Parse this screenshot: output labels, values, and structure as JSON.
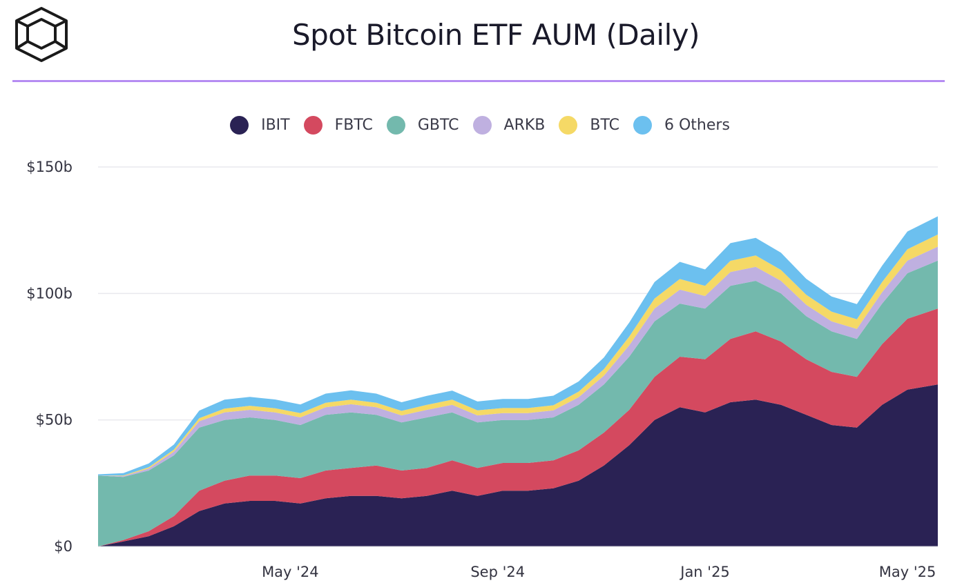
{
  "header": {
    "title": "Spot Bitcoin ETF AUM (Daily)",
    "logo_icon": "cube-logo-icon"
  },
  "colors": {
    "rule": "#b58cf2",
    "IBIT": "#2a2254",
    "FBTC": "#d4495f",
    "GBTC": "#73b9ad",
    "ARKB": "#bfb0e0",
    "BTC": "#f5d966",
    "6 Others": "#6cc0ef",
    "grid": "#e9e9ee"
  },
  "chart_data": {
    "type": "area",
    "stacked": true,
    "title": "Spot Bitcoin ETF AUM (Daily)",
    "xlabel": "",
    "ylabel": "",
    "ylim": [
      0,
      150
    ],
    "y_unit": "$b",
    "y_ticks": [
      {
        "value": 0,
        "label": "$0"
      },
      {
        "value": 50,
        "label": "$50b"
      },
      {
        "value": 100,
        "label": "$100b"
      },
      {
        "value": 150,
        "label": "$150b"
      }
    ],
    "x_range_months": [
      0,
      16.6
    ],
    "x_ticks": [
      {
        "value": 3.8,
        "label": "May '24"
      },
      {
        "value": 7.9,
        "label": "Sep '24"
      },
      {
        "value": 12.0,
        "label": "Jan '25"
      },
      {
        "value": 16.0,
        "label": "May '25"
      }
    ],
    "x": [
      0,
      0.5,
      1.0,
      1.5,
      2.0,
      2.5,
      3.0,
      3.5,
      4.0,
      4.5,
      5.0,
      5.5,
      6.0,
      6.5,
      7.0,
      7.5,
      8.0,
      8.5,
      9.0,
      9.5,
      10.0,
      10.5,
      11.0,
      11.5,
      12.0,
      12.5,
      13.0,
      13.5,
      14.0,
      14.5,
      15.0,
      15.5,
      16.0,
      16.6
    ],
    "legend": [
      "IBIT",
      "FBTC",
      "GBTC",
      "ARKB",
      "BTC",
      "6 Others"
    ],
    "series": [
      {
        "name": "IBIT",
        "values": [
          0,
          2,
          4,
          8,
          14,
          17,
          18,
          18,
          17,
          19,
          20,
          20,
          19,
          20,
          22,
          20,
          22,
          22,
          23,
          26,
          32,
          40,
          50,
          55,
          53,
          57,
          58,
          56,
          52,
          48,
          47,
          56,
          62,
          64
        ]
      },
      {
        "name": "FBTC",
        "values": [
          0,
          0.5,
          2,
          4,
          8,
          9,
          10,
          10,
          10,
          11,
          11,
          12,
          11,
          11,
          12,
          11,
          11,
          11,
          11,
          12,
          13,
          14,
          17,
          20,
          21,
          25,
          27,
          25,
          22,
          21,
          20,
          24,
          28,
          30
        ]
      },
      {
        "name": "GBTC",
        "values": [
          28,
          25,
          24,
          24,
          25,
          24,
          23,
          22,
          21,
          22,
          22,
          20,
          19,
          20,
          19,
          18,
          17,
          17,
          17,
          18,
          19,
          21,
          22,
          21,
          20,
          21,
          20,
          19,
          17,
          16,
          15,
          16,
          18,
          19
        ]
      },
      {
        "name": "ARKB",
        "values": [
          0,
          0.3,
          0.8,
          1.5,
          2.5,
          3,
          3,
          3,
          3,
          3,
          3.2,
          3,
          2.8,
          3,
          3,
          2.8,
          2.7,
          2.7,
          2.8,
          3,
          3.5,
          4.5,
          5,
          5.5,
          5,
          5.5,
          5.5,
          5,
          4.5,
          4,
          4,
          4.5,
          5,
          5.5
        ]
      },
      {
        "name": "BTC",
        "values": [
          0,
          0.2,
          0.5,
          0.8,
          1.2,
          1.5,
          1.6,
          1.6,
          1.7,
          1.8,
          1.8,
          1.8,
          1.8,
          2,
          2,
          2,
          2,
          2,
          2,
          2.2,
          2.6,
          3.5,
          4,
          4.2,
          4,
          4.4,
          4.5,
          4.3,
          4,
          3.8,
          3.8,
          4,
          4.5,
          4.8
        ]
      },
      {
        "name": "6 Others",
        "values": [
          0.5,
          1,
          1.5,
          2,
          3,
          3.5,
          3.5,
          3.5,
          3.4,
          3.6,
          3.7,
          3.6,
          3.4,
          3.5,
          3.6,
          3.5,
          3.6,
          3.6,
          3.8,
          4,
          4.6,
          5.5,
          6.5,
          6.8,
          6.5,
          7,
          7,
          6.8,
          6.3,
          6,
          6,
          6.5,
          7,
          7.2
        ]
      }
    ]
  }
}
